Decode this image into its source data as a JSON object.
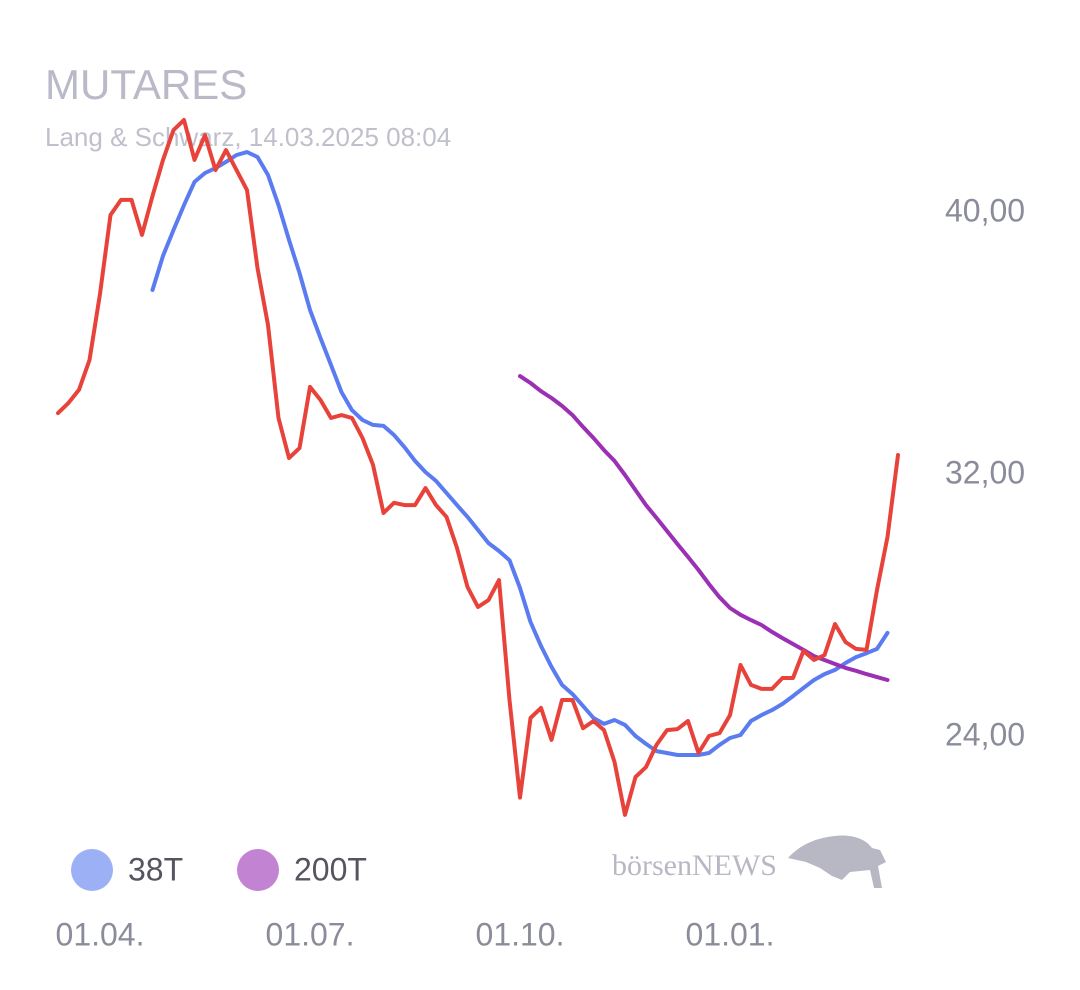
{
  "chart_data": {
    "type": "line",
    "title": "MUTARES",
    "subtitle": "Lang & Schwarz, 14.03.2025 08:04",
    "watermark": "börsenNEWS",
    "categories": [
      null,
      null,
      null,
      null,
      "01.04.",
      null,
      null,
      null,
      null,
      null,
      null,
      null,
      null,
      null,
      null,
      null,
      null,
      null,
      null,
      null,
      null,
      null,
      null,
      null,
      "01.07.",
      null,
      null,
      null,
      null,
      null,
      null,
      null,
      null,
      null,
      null,
      null,
      null,
      null,
      null,
      null,
      null,
      null,
      null,
      null,
      "01.10.",
      null,
      null,
      null,
      null,
      null,
      null,
      null,
      null,
      null,
      null,
      null,
      null,
      null,
      null,
      null,
      null,
      null,
      null,
      null,
      "01.01.",
      null,
      null,
      null,
      null,
      null,
      null,
      null,
      null,
      null,
      null,
      null,
      null,
      null,
      null,
      null,
      null
    ],
    "ylim": [
      21,
      44
    ],
    "yticks": [
      {
        "value": 24,
        "label": "24,00"
      },
      {
        "value": 32,
        "label": "32,00"
      },
      {
        "value": 40,
        "label": "40,00"
      }
    ],
    "grid": false,
    "series": [
      {
        "color": "#e8433a",
        "values": [
          33.89,
          34.2,
          34.6,
          35.51,
          37.53,
          39.94,
          40.4,
          40.4,
          39.33,
          40.52,
          41.62,
          42.53,
          42.84,
          41.62,
          42.38,
          41.31,
          41.92,
          41.31,
          40.7,
          38.32,
          36.58,
          33.74,
          32.52,
          32.82,
          34.69,
          34.29,
          33.74,
          33.83,
          33.74,
          33.13,
          32.31,
          30.84,
          31.15,
          31.08,
          31.08,
          31.6,
          31.08,
          30.72,
          29.77,
          28.58,
          27.97,
          28.18,
          28.79,
          25.13,
          22.15,
          24.58,
          24.89,
          23.91,
          25.13,
          25.13,
          24.27,
          24.49,
          24.21,
          23.24,
          21.62,
          22.78,
          23.08,
          23.76,
          24.21,
          24.24,
          24.49,
          23.51,
          24.03,
          24.12,
          24.67,
          26.2,
          25.59,
          25.47,
          25.47,
          25.8,
          25.8,
          26.63,
          26.35,
          26.5,
          27.45,
          26.9,
          26.69,
          26.66,
          28.49,
          30.11,
          32.61
        ]
      },
      {
        "name": "38T",
        "color": "#5a7cf0",
        "values": [
          null,
          null,
          null,
          null,
          null,
          null,
          null,
          null,
          null,
          37.65,
          38.69,
          39.48,
          40.24,
          40.95,
          41.22,
          41.37,
          41.56,
          41.77,
          41.86,
          41.71,
          41.16,
          40.24,
          39.18,
          38.17,
          37.04,
          36.18,
          35.36,
          34.53,
          33.98,
          33.68,
          33.53,
          33.5,
          33.22,
          32.85,
          32.43,
          32.09,
          31.82,
          31.45,
          31.08,
          30.72,
          30.32,
          29.92,
          29.68,
          29.4,
          28.55,
          27.51,
          26.78,
          26.14,
          25.59,
          25.31,
          24.95,
          24.58,
          24.4,
          24.52,
          24.37,
          24.03,
          23.79,
          23.57,
          23.51,
          23.45,
          23.45,
          23.45,
          23.51,
          23.76,
          23.97,
          24.06,
          24.49,
          24.67,
          24.82,
          25.01,
          25.25,
          25.5,
          25.74,
          25.92,
          26.05,
          26.26,
          26.44,
          26.56,
          26.69,
          27.18,
          null
        ]
      },
      {
        "name": "200T",
        "color": "#9b30b5",
        "values": [
          null,
          null,
          null,
          null,
          null,
          null,
          null,
          null,
          null,
          null,
          null,
          null,
          null,
          null,
          null,
          null,
          null,
          null,
          null,
          null,
          null,
          null,
          null,
          null,
          null,
          null,
          null,
          null,
          null,
          null,
          null,
          null,
          null,
          null,
          null,
          null,
          null,
          null,
          null,
          null,
          null,
          null,
          null,
          null,
          35.02,
          34.81,
          34.56,
          34.35,
          34.11,
          33.83,
          33.47,
          33.13,
          32.76,
          32.43,
          32.0,
          31.54,
          31.08,
          30.69,
          30.29,
          29.89,
          29.5,
          29.1,
          28.67,
          28.27,
          27.94,
          27.73,
          27.57,
          27.42,
          27.21,
          27.02,
          26.84,
          26.66,
          26.47,
          26.35,
          26.23,
          26.11,
          26.02,
          25.92,
          25.83,
          25.74,
          null
        ]
      }
    ]
  }
}
